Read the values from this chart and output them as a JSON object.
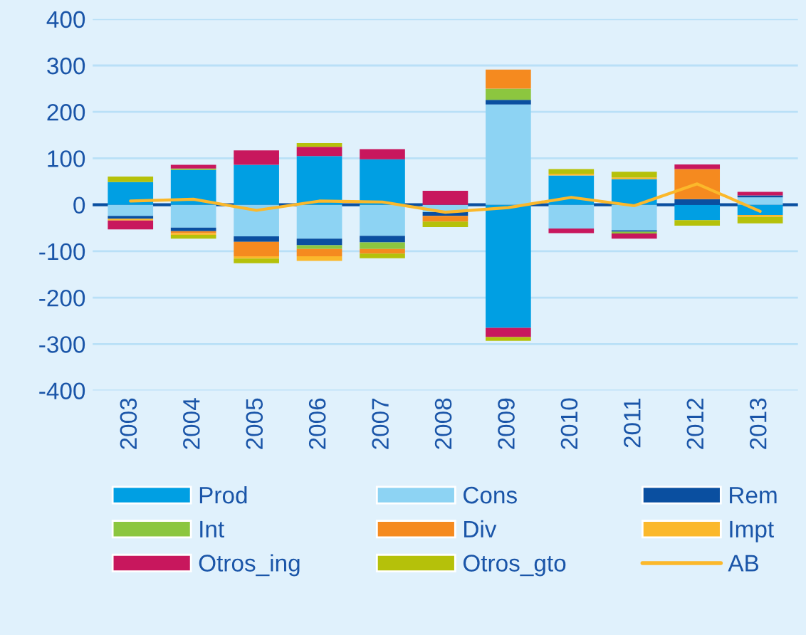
{
  "chart_data": {
    "type": "bar",
    "stacked": true,
    "categories": [
      "2003",
      "2004",
      "2005",
      "2006",
      "2007",
      "2008",
      "2009",
      "2010",
      "2011",
      "2012",
      "2013"
    ],
    "series": [
      {
        "name": "Prod",
        "color": "#009fe3",
        "values": [
          49,
          75,
          86,
          105,
          98,
          null,
          -265,
          63,
          55,
          -33,
          -22
        ]
      },
      {
        "name": "Cons",
        "color": "#8dd3f3",
        "values": [
          -24,
          -49,
          -68,
          -73,
          -67,
          -16,
          216,
          -51,
          -55,
          null,
          16
        ]
      },
      {
        "name": "Rem",
        "color": "#0a4fa0",
        "values": [
          -6,
          -8,
          -12,
          -14,
          -14,
          -8,
          10,
          null,
          -3,
          12,
          4
        ]
      },
      {
        "name": "Int",
        "color": "#8cc63f",
        "values": [
          null,
          3,
          null,
          -8,
          -14,
          null,
          24,
          null,
          -4,
          null,
          null
        ]
      },
      {
        "name": "Div",
        "color": "#f58a1f",
        "values": [
          null,
          -4,
          -31,
          -16,
          -10,
          -12,
          41,
          null,
          null,
          65,
          null
        ]
      },
      {
        "name": "Impt",
        "color": "#fbb82b",
        "values": [
          -4,
          -4,
          -5,
          -10,
          null,
          null,
          null,
          4,
          4,
          null,
          -4
        ]
      },
      {
        "name": "Otros_ing",
        "color": "#c8175d",
        "values": [
          -19,
          8,
          31,
          20,
          22,
          30,
          -20,
          -10,
          -11,
          10,
          8
        ]
      },
      {
        "name": "Otros_gto",
        "color": "#b5c10a",
        "values": [
          12,
          -8,
          -10,
          8,
          -10,
          -12,
          -8,
          10,
          12,
          -12,
          -14
        ]
      },
      {
        "name": "AB",
        "type": "line",
        "color": "#fbb82b",
        "values": [
          8,
          12,
          -12,
          8,
          6,
          -16,
          -6,
          16,
          -2,
          45,
          -14
        ]
      }
    ],
    "ylim": [
      -400,
      400
    ],
    "yticks": [
      -400,
      -300,
      -200,
      -100,
      0,
      100,
      200,
      300,
      400
    ],
    "ref_lines": [
      {
        "axis": "y",
        "value": 0,
        "color": "#0a4fa0"
      }
    ],
    "grid": "y",
    "legend": "bottom"
  }
}
